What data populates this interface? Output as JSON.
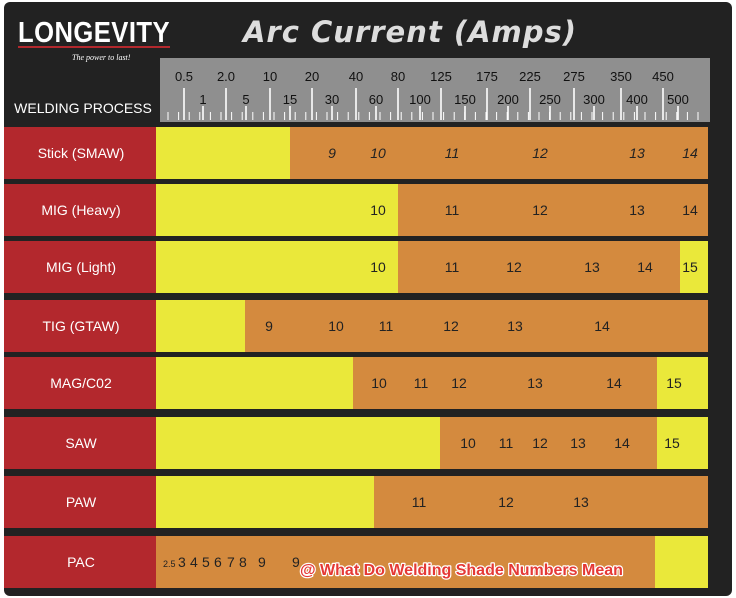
{
  "header": {
    "logo_text": "LONGEVITY",
    "logo_tagline": "The power to last!",
    "title": "Arc Current (Amps)",
    "process_header": "WELDING PROCESS"
  },
  "watermark": "@ What Do Welding Shade Numbers Mean",
  "colors": {
    "background": "#222222",
    "process_label": "#b3282d",
    "no_filter": "#eae83a",
    "shade": "#d48a3e",
    "scale_bar": "#8f8f8f"
  },
  "chart_data": {
    "type": "table",
    "title": "Arc Current (Amps)",
    "row_header": "WELDING PROCESS",
    "scale_ticks_upper": [
      "0.5",
      "2.0",
      "10",
      "20",
      "40",
      "80",
      "125",
      "175",
      "225",
      "275",
      "350",
      "450"
    ],
    "scale_ticks_lower": [
      "1",
      "5",
      "15",
      "30",
      "60",
      "100",
      "150",
      "200",
      "250",
      "300",
      "400",
      "500"
    ],
    "rows": [
      {
        "process": "Stick (SMAW)",
        "no_filter_until": "15",
        "shades": [
          "9",
          "10",
          "11",
          "12",
          "13",
          "14"
        ]
      },
      {
        "process": "MIG (Heavy)",
        "no_filter_until": "80",
        "shades": [
          "10",
          "11",
          "12",
          "13",
          "14"
        ]
      },
      {
        "process": "MIG (Light)",
        "no_filter_until": "80",
        "shades": [
          "10",
          "11",
          "12",
          "13",
          "14",
          "15"
        ]
      },
      {
        "process": "TIG (GTAW)",
        "no_filter_until": "5",
        "shades": [
          "9",
          "10",
          "11",
          "12",
          "13",
          "14"
        ]
      },
      {
        "process": "MAG/C02",
        "no_filter_until": "60",
        "shades": [
          "10",
          "11",
          "12",
          "13",
          "14",
          "15"
        ]
      },
      {
        "process": "SAW",
        "no_filter_until": "125",
        "shades": [
          "10",
          "11",
          "12",
          "13",
          "14",
          "15"
        ]
      },
      {
        "process": "PAW",
        "no_filter_until": "60",
        "shades": [
          "11",
          "12",
          "13"
        ]
      },
      {
        "process": "PAC",
        "no_filter_until": "",
        "shades": [
          "2.5",
          "3",
          "4",
          "5",
          "6",
          "7",
          "8",
          "9",
          "9"
        ]
      }
    ]
  }
}
